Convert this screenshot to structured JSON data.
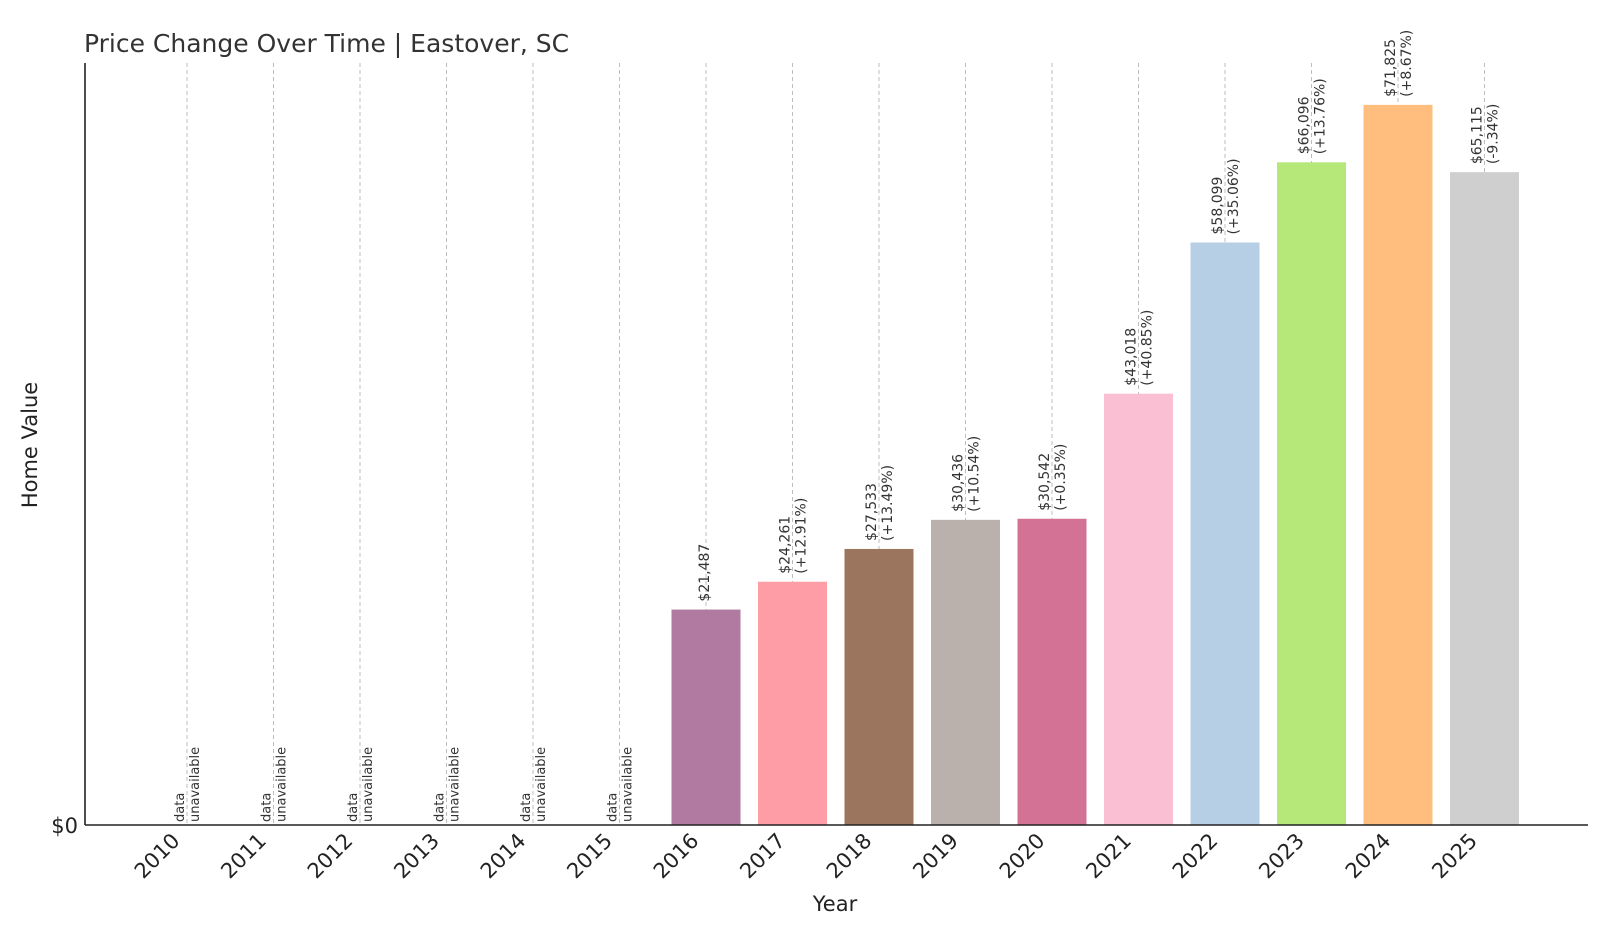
{
  "chart_data": {
    "type": "bar",
    "title": "Price Change Over Time | Eastover, SC",
    "xlabel": "Year",
    "ylabel": "Home Value",
    "y_tick_labels": [
      "$0"
    ],
    "ylim": [
      0,
      76000
    ],
    "grid": "vertical dashed",
    "unavailable_label": [
      "data",
      "unavailable"
    ],
    "categories": [
      "2010",
      "2011",
      "2012",
      "2013",
      "2014",
      "2015",
      "2016",
      "2017",
      "2018",
      "2019",
      "2020",
      "2021",
      "2022",
      "2023",
      "2024",
      "2025"
    ],
    "values": [
      null,
      null,
      null,
      null,
      null,
      null,
      21487,
      24261,
      27533,
      30436,
      30542,
      43018,
      58099,
      66096,
      71825,
      65115
    ],
    "value_labels": [
      "",
      "",
      "",
      "",
      "",
      "",
      "$21,487",
      "$24,261",
      "$27,533",
      "$30,436",
      "$30,542",
      "$43,018",
      "$58,099",
      "$66,096",
      "$71,825",
      "$65,115"
    ],
    "change_labels": [
      "",
      "",
      "",
      "",
      "",
      "",
      "",
      "(+12.91%)",
      "(+13.49%)",
      "(+10.54%)",
      "(+0.35%)",
      "(+40.85%)",
      "(+35.06%)",
      "(+13.76%)",
      "(+8.67%)",
      "(-9.34%)"
    ],
    "colors": [
      "#b07aa1",
      "#b07aa1",
      "#b07aa1",
      "#b07aa1",
      "#b07aa1",
      "#b07aa1",
      "#b07aa1",
      "#ff9da7",
      "#9c755f",
      "#bab0ac",
      "#d37295",
      "#fabfd2",
      "#b6cfe4",
      "#b5e779",
      "#ffbe7d",
      "#cfcfcf"
    ]
  }
}
